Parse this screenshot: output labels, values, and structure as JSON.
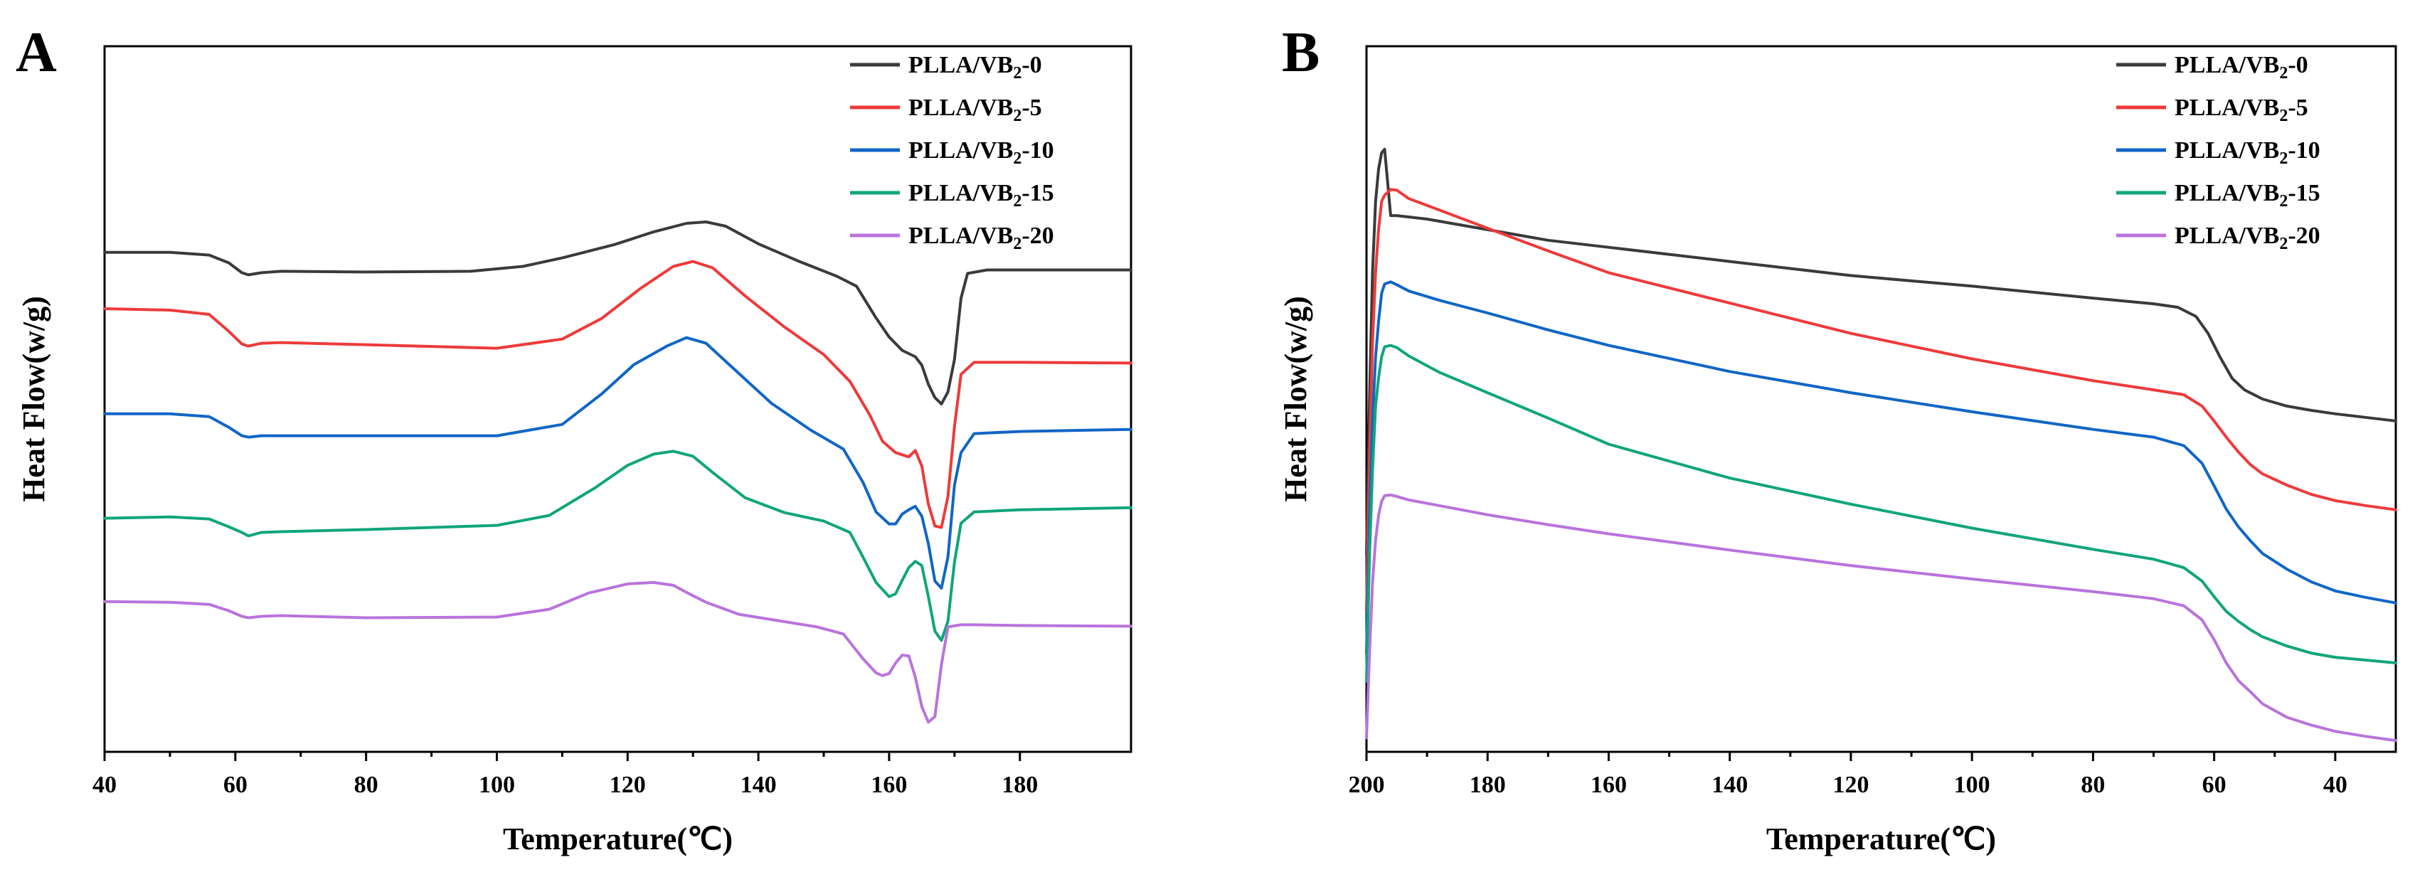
{
  "chart_data": [
    {
      "panel": "A",
      "type": "line",
      "xlabel": "Temperature(℃)",
      "ylabel": "Heat Flow(w/g)",
      "xlim": [
        40,
        197
      ],
      "ylim": [
        0,
        100
      ],
      "x_ticks": [
        40,
        60,
        80,
        100,
        120,
        140,
        160,
        180
      ],
      "y_ticks": [],
      "legend_position": "top-right",
      "series": [
        {
          "name": "PLLA/VB₂-0",
          "base": "PLLA/VB",
          "sub": "2",
          "suffix": "-0",
          "color": "#3a3a3a",
          "x": [
            40,
            50,
            56,
            59,
            61,
            62,
            64,
            67,
            80,
            96,
            104,
            110,
            118,
            124,
            129,
            132,
            135,
            140,
            146,
            152,
            155,
            158,
            160,
            162,
            164,
            165,
            166,
            167,
            168,
            169,
            170,
            171,
            172,
            175,
            185,
            197
          ],
          "y": [
            70.8,
            70.8,
            70.4,
            69.3,
            67.9,
            67.6,
            67.9,
            68.1,
            68.0,
            68.1,
            68.8,
            70.0,
            71.9,
            73.7,
            74.9,
            75.1,
            74.5,
            72.0,
            69.6,
            67.4,
            66.0,
            61.5,
            58.8,
            56.9,
            56.0,
            54.8,
            52.1,
            50.2,
            49.3,
            51.0,
            55.6,
            64.3,
            67.8,
            68.3,
            68.3,
            68.3
          ]
        },
        {
          "name": "PLLA/VB₂-5",
          "base": "PLLA/VB",
          "sub": "2",
          "suffix": "-5",
          "color": "#ee3a3a",
          "x": [
            40,
            50,
            56,
            59,
            61,
            62,
            64,
            67,
            80,
            100,
            110,
            116,
            122,
            127,
            130,
            133,
            138,
            144,
            150,
            154,
            157,
            159,
            161,
            163,
            164,
            165,
            166,
            167,
            168,
            169,
            170,
            171,
            173,
            180,
            197
          ],
          "y": [
            62.8,
            62.6,
            62.0,
            59.6,
            57.8,
            57.5,
            57.9,
            58.0,
            57.7,
            57.2,
            58.5,
            61.4,
            65.7,
            68.8,
            69.5,
            68.6,
            64.6,
            60.2,
            56.3,
            52.5,
            47.8,
            44.0,
            42.4,
            41.8,
            42.7,
            40.5,
            35.1,
            32.0,
            31.8,
            36.2,
            46.1,
            53.5,
            55.2,
            55.2,
            55.1
          ]
        },
        {
          "name": "PLLA/VB₂-10",
          "base": "PLLA/VB",
          "sub": "2",
          "suffix": "-10",
          "color": "#1066c6",
          "x": [
            40,
            50,
            56,
            59,
            61,
            62,
            64,
            67,
            80,
            100,
            110,
            116,
            121,
            126,
            129,
            132,
            136,
            142,
            148,
            153,
            156,
            158,
            160,
            161,
            162,
            163,
            164,
            165,
            166,
            167,
            168,
            169,
            170,
            171,
            173,
            180,
            197
          ],
          "y": [
            47.9,
            47.9,
            47.5,
            46.0,
            44.8,
            44.6,
            44.8,
            44.8,
            44.8,
            44.8,
            46.4,
            50.7,
            54.9,
            57.5,
            58.7,
            57.9,
            54.5,
            49.4,
            45.6,
            42.9,
            38.2,
            34.0,
            32.3,
            32.3,
            33.7,
            34.3,
            34.8,
            33.4,
            29.5,
            24.2,
            23.2,
            27.6,
            37.8,
            42.4,
            45.1,
            45.4,
            45.7
          ]
        },
        {
          "name": "PLLA/VB₂-15",
          "base": "PLLA/VB",
          "sub": "2",
          "suffix": "-15",
          "color": "#10a57a",
          "x": [
            40,
            50,
            56,
            59,
            61,
            62,
            64,
            67,
            80,
            100,
            108,
            115,
            120,
            124,
            127,
            130,
            133,
            138,
            144,
            150,
            154,
            156,
            158,
            160,
            161,
            162,
            163,
            164,
            165,
            166,
            167,
            168,
            169,
            170,
            171,
            173,
            180,
            197
          ],
          "y": [
            33.1,
            33.3,
            33.0,
            31.9,
            31.1,
            30.6,
            31.1,
            31.2,
            31.5,
            32.1,
            33.5,
            37.4,
            40.6,
            42.2,
            42.6,
            41.9,
            39.6,
            36.0,
            33.9,
            32.7,
            31.1,
            27.6,
            24.0,
            22.0,
            22.4,
            24.3,
            26.1,
            27.0,
            26.4,
            22.0,
            17.1,
            15.8,
            18.5,
            26.9,
            32.4,
            34.0,
            34.3,
            34.6
          ]
        },
        {
          "name": "PLLA/VB₂-20",
          "base": "PLLA/VB",
          "sub": "2",
          "suffix": "-20",
          "color": "#b973dd",
          "x": [
            40,
            50,
            56,
            59,
            61,
            62,
            64,
            67,
            80,
            100,
            108,
            114,
            120,
            124,
            127,
            129,
            132,
            137,
            143,
            149,
            153,
            156,
            158,
            159,
            160,
            161,
            162,
            163,
            164,
            165,
            166,
            167,
            168,
            169,
            171,
            173,
            180,
            197
          ],
          "y": [
            21.3,
            21.2,
            20.9,
            20.0,
            19.2,
            19.0,
            19.2,
            19.3,
            19.0,
            19.1,
            20.2,
            22.5,
            23.8,
            24.0,
            23.6,
            22.6,
            21.2,
            19.5,
            18.6,
            17.7,
            16.7,
            13.2,
            11.2,
            10.8,
            11.1,
            12.6,
            13.7,
            13.6,
            10.6,
            6.4,
            4.2,
            5.0,
            12.4,
            17.7,
            18.0,
            18.0,
            17.9,
            17.8
          ]
        }
      ]
    },
    {
      "panel": "B",
      "type": "line",
      "xlabel": "Temperature(℃)",
      "ylabel": "Heat Flow(w/g)",
      "xlim": [
        200,
        30
      ],
      "ylim": [
        0,
        100
      ],
      "x_ticks": [
        200,
        180,
        160,
        140,
        120,
        100,
        80,
        60,
        40
      ],
      "y_ticks": [],
      "legend_position": "top-right",
      "series": [
        {
          "name": "PLLA/VB₂-0",
          "base": "PLLA/VB",
          "sub": "2",
          "suffix": "-0",
          "color": "#3a3a3a",
          "x": [
            200,
            199.5,
            199,
            198.5,
            198,
            197.5,
            197,
            196,
            195,
            190,
            180,
            170,
            160,
            140,
            120,
            100,
            80,
            70,
            66,
            63,
            61,
            59,
            57,
            55,
            52,
            48,
            44,
            40,
            35,
            30
          ],
          "y": [
            28,
            50,
            68,
            78,
            82.6,
            84.9,
            85.4,
            76.0,
            76.0,
            75.5,
            74.0,
            72.5,
            71.5,
            69.5,
            67.5,
            66.0,
            64.3,
            63.5,
            63.0,
            61.7,
            59.3,
            55.9,
            52.9,
            51.3,
            50.0,
            49.0,
            48.4,
            47.9,
            47.4,
            46.9
          ]
        },
        {
          "name": "PLLA/VB₂-5",
          "base": "PLLA/VB",
          "sub": "2",
          "suffix": "-5",
          "color": "#ee3a3a",
          "x": [
            200,
            199.5,
            199,
            198.5,
            198,
            197.5,
            197,
            196,
            195,
            193,
            188,
            180,
            170,
            160,
            140,
            120,
            100,
            80,
            70,
            65,
            62,
            60,
            58,
            56,
            54,
            52,
            48,
            44,
            40,
            35,
            30
          ],
          "y": [
            20,
            42,
            58,
            68,
            74,
            78.0,
            78.9,
            79.7,
            79.6,
            78.4,
            76.8,
            74.2,
            71.0,
            67.9,
            63.6,
            59.3,
            55.7,
            52.6,
            51.3,
            50.6,
            49.0,
            46.9,
            44.6,
            42.5,
            40.7,
            39.4,
            37.8,
            36.5,
            35.6,
            34.9,
            34.3
          ]
        },
        {
          "name": "PLLA/VB₂-10",
          "base": "PLLA/VB",
          "sub": "2",
          "suffix": "-10",
          "color": "#1066c6",
          "x": [
            200,
            199.5,
            199,
            198.5,
            198,
            197.5,
            197,
            196,
            195,
            193,
            188,
            180,
            170,
            160,
            140,
            120,
            100,
            80,
            70,
            65,
            62,
            60,
            58,
            56,
            54,
            52,
            48,
            44,
            40,
            35,
            30
          ],
          "y": [
            14,
            33,
            47,
            56,
            61,
            65.0,
            66.3,
            66.6,
            66.2,
            65.3,
            64.0,
            62.2,
            59.8,
            57.6,
            53.9,
            50.9,
            48.2,
            45.7,
            44.6,
            43.4,
            40.9,
            37.7,
            34.4,
            31.9,
            29.9,
            28.1,
            25.9,
            24.1,
            22.8,
            21.9,
            21.1
          ]
        },
        {
          "name": "PLLA/VB₂-15",
          "base": "PLLA/VB",
          "sub": "2",
          "suffix": "-15",
          "color": "#10a57a",
          "x": [
            200,
            199.5,
            199,
            198.5,
            198,
            197.5,
            197,
            196,
            195,
            193,
            188,
            180,
            170,
            160,
            140,
            120,
            100,
            80,
            70,
            65,
            62,
            60,
            58,
            56,
            54,
            52,
            48,
            44,
            40,
            35,
            30
          ],
          "y": [
            10,
            28,
            40,
            49,
            53,
            56.0,
            57.4,
            57.6,
            57.3,
            56.1,
            53.8,
            50.9,
            47.3,
            43.6,
            38.8,
            35.1,
            31.7,
            28.7,
            27.3,
            26.1,
            24.2,
            22.0,
            19.9,
            18.5,
            17.3,
            16.3,
            15.0,
            14.0,
            13.4,
            13.0,
            12.6
          ]
        },
        {
          "name": "PLLA/VB₂-20",
          "base": "PLLA/VB",
          "sub": "2",
          "suffix": "-20",
          "color": "#b973dd",
          "x": [
            200,
            199.5,
            199,
            198.5,
            198,
            197.5,
            197,
            196,
            195,
            193,
            188,
            180,
            170,
            160,
            140,
            120,
            100,
            80,
            70,
            65,
            62,
            60,
            58,
            56,
            54,
            52,
            48,
            44,
            40,
            35,
            30
          ],
          "y": [
            2,
            14,
            24,
            30,
            33.5,
            35.5,
            36.3,
            36.4,
            36.2,
            35.7,
            34.9,
            33.6,
            32.2,
            30.9,
            28.6,
            26.4,
            24.5,
            22.7,
            21.7,
            20.7,
            18.7,
            15.9,
            12.6,
            10.1,
            8.5,
            6.8,
            4.9,
            3.8,
            2.9,
            2.2,
            1.6
          ]
        }
      ]
    }
  ]
}
